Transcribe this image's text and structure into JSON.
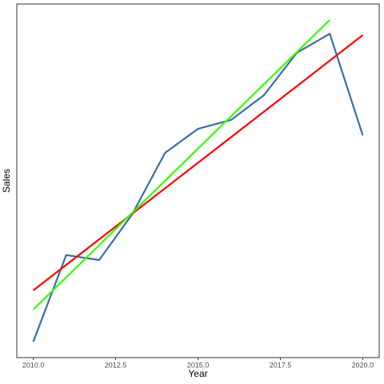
{
  "chart_data": {
    "type": "line",
    "x_label": "Year",
    "y_label": "Sales",
    "xlim": [
      2009.5,
      2020.5
    ],
    "ylim": [
      0,
      100
    ],
    "xticks": [
      {
        "value": 2010,
        "label": "2010.0"
      },
      {
        "value": 2012.5,
        "label": "2012.5"
      },
      {
        "value": 2015,
        "label": "2015.0"
      },
      {
        "value": 2017.5,
        "label": "2017.5"
      },
      {
        "value": 2020,
        "label": "2020.0"
      }
    ],
    "grid": false,
    "series": [
      {
        "color": "#3a6ea5",
        "x": [
          2010,
          2011,
          2012,
          2013,
          2014,
          2015,
          2016,
          2017,
          2018,
          2019,
          2020
        ],
        "values": [
          4.5,
          29.0,
          27.6,
          40.5,
          57.9,
          64.7,
          67.2,
          74.2,
          86.2,
          91.6,
          62.9
        ]
      },
      {
        "color": "#ff0000",
        "x": [
          2010,
          2020
        ],
        "values": [
          19.0,
          91.2
        ]
      },
      {
        "color": "#33ff00",
        "x": [
          2010,
          2019
        ],
        "values": [
          13.6,
          95.5
        ]
      }
    ]
  }
}
